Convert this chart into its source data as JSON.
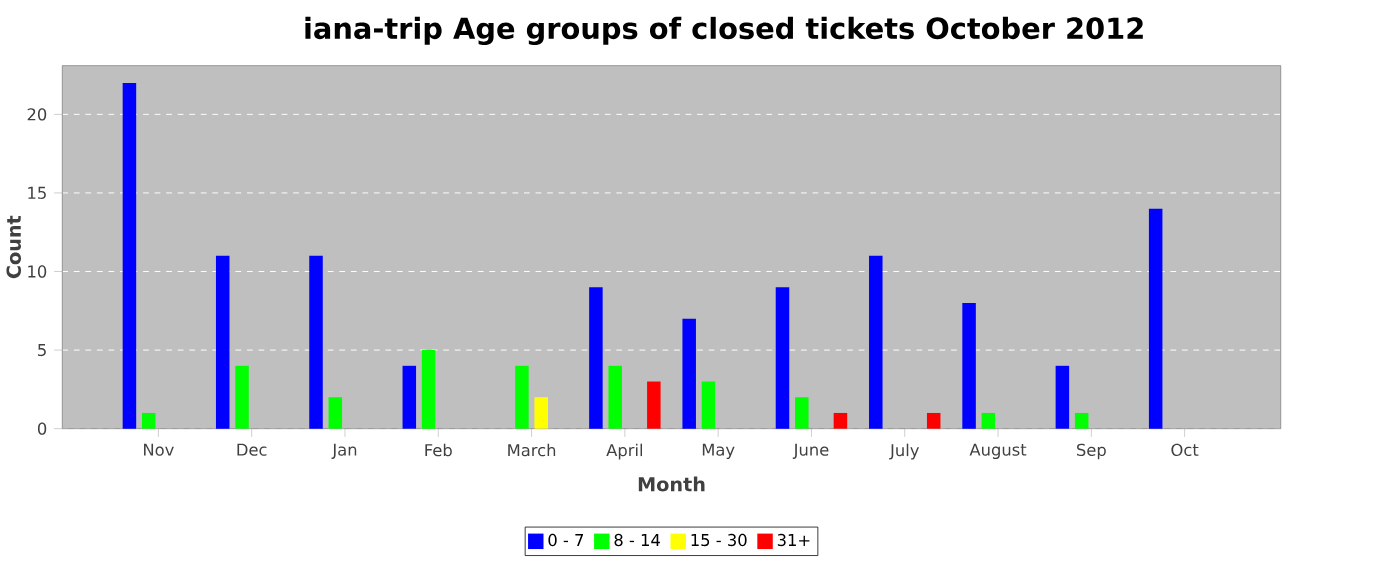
{
  "chart_data": {
    "type": "bar",
    "title": "iana-trip Age groups of closed tickets October 2012",
    "xlabel": "Month",
    "ylabel": "Count",
    "categories": [
      "Nov",
      "Dec",
      "Jan",
      "Feb",
      "March",
      "April",
      "May",
      "June",
      "July",
      "August",
      "Sep",
      "Oct"
    ],
    "series": [
      {
        "name": "0 - 7",
        "color": "#0000ff",
        "values": [
          22,
          11,
          11,
          4,
          0,
          9,
          7,
          9,
          11,
          8,
          4,
          14
        ]
      },
      {
        "name": "8 - 14",
        "color": "#00ff00",
        "values": [
          1,
          4,
          2,
          5,
          4,
          4,
          3,
          2,
          0,
          1,
          1,
          0
        ]
      },
      {
        "name": "15 - 30",
        "color": "#ffff00",
        "values": [
          0,
          0,
          0,
          0,
          2,
          0,
          0,
          0,
          0,
          0,
          0,
          0
        ]
      },
      {
        "name": "31+",
        "color": "#ff0000",
        "values": [
          0,
          0,
          0,
          0,
          0,
          3,
          0,
          1,
          1,
          0,
          0,
          0
        ]
      }
    ],
    "ylim": [
      0,
      23.1
    ],
    "yticks": [
      0,
      5,
      10,
      15,
      20
    ],
    "grid": "y",
    "legend": "bottom"
  }
}
